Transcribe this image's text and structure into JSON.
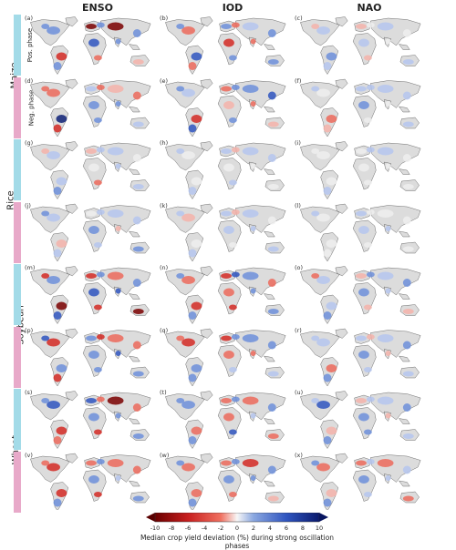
{
  "columns": [
    "ENSO",
    "IOD",
    "NAO"
  ],
  "crops": [
    "Maize",
    "Rice",
    "Soybean",
    "Wheat"
  ],
  "phases": [
    "Pos. phase",
    "Neg. phase"
  ],
  "phase_labels_shown_on_crop": "Maize",
  "panel_letters": [
    "(a)",
    "(b)",
    "(c)",
    "(d)",
    "(e)",
    "(f)",
    "(g)",
    "(h)",
    "(i)",
    "(j)",
    "(k)",
    "(l)",
    "(m)",
    "(n)",
    "(o)",
    "(p)",
    "(q)",
    "(r)",
    "(s)",
    "(t)",
    "(u)",
    "(v)",
    "(w)",
    "(x)"
  ],
  "colors": {
    "positive_phase": "#a3dbe8",
    "negative_phase": "#e8a9c9",
    "land_base": "#dcdcdc",
    "coast": "#444444",
    "strong_neg": "#6b0000",
    "neg": "#e0302a",
    "neutral": "#f5f5f5",
    "pos": "#3a5fc6",
    "strong_pos": "#0a1a6e"
  },
  "colorbar": {
    "ticks": [
      "-10",
      "-8",
      "-6",
      "-4",
      "-2",
      "0",
      "2",
      "4",
      "6",
      "8",
      "10"
    ],
    "range": [
      -10,
      10
    ],
    "extend": "both",
    "label": "Median crop yield deviation (%) during strong oscillation phases"
  },
  "map_patterns": [
    [
      0.6,
      0.4,
      -0.8,
      0.5,
      -0.9,
      0.6,
      0.7,
      -0.5,
      -0.9,
      0.4,
      0.6,
      -0.3
    ],
    [
      -0.5,
      0.6,
      0.7,
      -0.6,
      0.5,
      -0.4,
      -0.7,
      0.5,
      0.3,
      -0.6,
      0.4,
      0.5
    ],
    [
      0.2,
      -0.3,
      0.4,
      0.2,
      -0.2,
      0.1,
      0.3,
      -0.2,
      0.2,
      0.1,
      -0.1,
      0.3
    ],
    [
      -0.6,
      -0.4,
      0.9,
      -0.7,
      0.3,
      -0.5,
      0.6,
      0.4,
      -0.3,
      0.5,
      -0.4,
      0.2
    ],
    [
      0.3,
      0.6,
      -0.7,
      0.8,
      -0.4,
      0.5,
      -0.3,
      0.6,
      0.4,
      -0.5,
      0.7,
      -0.3
    ],
    [
      0.1,
      0.3,
      -0.5,
      -0.2,
      0.2,
      0.3,
      0.4,
      -0.1,
      0.2,
      0.1,
      0.3,
      0.2
    ],
    [
      0.3,
      -0.2,
      0.2,
      0.4,
      -0.3,
      0.2,
      0.1,
      -0.4,
      0.2,
      0.3,
      0.1,
      0.2
    ],
    [
      -0.1,
      0.3,
      0.1,
      0.2,
      0.3,
      -0.2,
      0.1,
      0.2,
      0.3,
      0.1,
      0.2,
      -0.1
    ],
    [
      0.1,
      0.1,
      -0.1,
      0.2,
      0.1,
      0.2,
      0.1,
      0.1,
      0.3,
      0.1,
      -0.1,
      0.1
    ],
    [
      0.3,
      0.4,
      -0.3,
      0.2,
      0.1,
      0.3,
      0.4,
      0.2,
      0.3,
      -0.2,
      0.2,
      0.4
    ],
    [
      -0.2,
      0.3,
      -0.1,
      0.2,
      0.3,
      -0.3,
      0.2,
      0.1,
      0.3,
      0.2,
      -0.1,
      0.2
    ],
    [
      0.1,
      0.2,
      0.1,
      -0.1,
      0.2,
      0.1,
      0.3,
      0.1,
      0.1,
      0.2,
      0.1,
      0.1
    ],
    [
      0.6,
      -0.7,
      -0.9,
      0.7,
      -0.8,
      0.6,
      0.8,
      -0.7,
      -0.6,
      0.7,
      0.5,
      -0.9
    ],
    [
      -0.6,
      0.5,
      -0.8,
      0.6,
      -0.7,
      0.7,
      -0.5,
      -0.8,
      0.6,
      0.4,
      -0.6,
      0.5
    ],
    [
      0.3,
      -0.4,
      0.2,
      0.5,
      -0.3,
      0.4,
      0.6,
      -0.2,
      0.3,
      0.2,
      0.4,
      -0.3
    ],
    [
      -0.8,
      0.7,
      0.6,
      -0.8,
      0.5,
      -0.7,
      0.6,
      0.5,
      -0.6,
      0.7,
      -0.5,
      0.4
    ],
    [
      -0.7,
      -0.6,
      0.5,
      0.4,
      -0.7,
      0.6,
      -0.5,
      0.3,
      0.6,
      -0.4,
      0.5,
      0.3
    ],
    [
      0.3,
      0.2,
      -0.4,
      0.5,
      0.3,
      -0.3,
      0.4,
      0.2,
      0.3,
      -0.2,
      0.4,
      0.3
    ],
    [
      0.7,
      0.6,
      -0.8,
      -0.6,
      0.7,
      -0.5,
      0.6,
      -0.7,
      -0.9,
      0.4,
      -0.5,
      0.6
    ],
    [
      0.6,
      0.5,
      -0.5,
      0.6,
      -0.6,
      0.5,
      -0.4,
      0.7,
      -0.6,
      0.3,
      0.5,
      -0.4
    ],
    [
      0.7,
      0.2,
      -0.3,
      0.5,
      -0.2,
      0.3,
      0.4,
      0.5,
      0.2,
      -0.3,
      0.4,
      0.2
    ],
    [
      -0.8,
      -0.5,
      -0.7,
      0.4,
      -0.6,
      0.5,
      0.5,
      -0.7,
      -0.6,
      0.3,
      -0.5,
      0.4
    ],
    [
      -0.5,
      0.6,
      -0.4,
      0.5,
      -0.6,
      0.4,
      0.6,
      -0.5,
      -0.7,
      0.5,
      0.4,
      -0.3
    ],
    [
      -0.4,
      0.5,
      -0.3,
      0.4,
      -0.6,
      0.3,
      0.4,
      0.2,
      -0.5,
      0.3,
      0.2,
      -0.4
    ]
  ]
}
